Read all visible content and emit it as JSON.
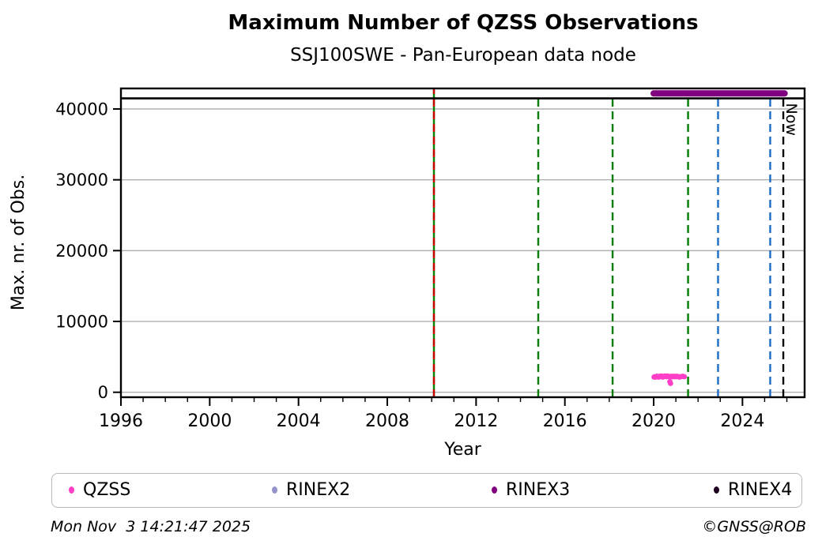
{
  "figure": {
    "footer_left": "Mon Nov  3 14:21:47 2025",
    "footer_right": "©GNSS@ROB"
  },
  "chart_data": {
    "type": "scatter",
    "title": "Maximum Number of QZSS Observations",
    "subtitle": "SSJ100SWE - Pan-European data node",
    "xlabel": "Year",
    "ylabel": "Max. nr. of Obs.",
    "xlim": [
      1996,
      2026.8
    ],
    "ylim": [
      -700,
      42900
    ],
    "xticks_major": [
      1996,
      2000,
      2004,
      2008,
      2012,
      2016,
      2020,
      2024
    ],
    "xticks_minor_step": 1,
    "yticks": [
      0,
      10000,
      20000,
      30000,
      40000
    ],
    "grid": "horizontal",
    "legend_position": "bottom",
    "colors": {
      "grid": "#b0b0b0",
      "frame": "#000000"
    },
    "reference_hline": {
      "y": 41500,
      "color": "#000000",
      "style": "solid"
    },
    "now_label": {
      "text": "Now",
      "x": 2025.84
    },
    "vlines": [
      {
        "x": 2010.1,
        "color": "#007f00",
        "style": "solid",
        "top": 42900
      },
      {
        "x": 2010.1,
        "color": "#cc0000",
        "style": "dashed",
        "top": 42900
      },
      {
        "x": 2014.8,
        "color": "#007f00",
        "style": "dashed",
        "top": 41500
      },
      {
        "x": 2018.15,
        "color": "#007f00",
        "style": "dashed",
        "top": 41500
      },
      {
        "x": 2021.55,
        "color": "#007f00",
        "style": "dashed",
        "top": 41500
      },
      {
        "x": 2022.9,
        "color": "#1c6ac4",
        "style": "dashed",
        "top": 41500
      },
      {
        "x": 2025.25,
        "color": "#1c6ac4",
        "style": "dashed",
        "top": 41500
      },
      {
        "x": 2025.84,
        "color": "#000000",
        "style": "dashed",
        "top": 41500
      }
    ],
    "series": [
      {
        "name": "QZSS",
        "color": "#ff3fc8",
        "marker": "dot",
        "points": [
          [
            2020.02,
            2150
          ],
          [
            2020.06,
            2200
          ],
          [
            2020.1,
            2150
          ],
          [
            2020.14,
            2250
          ],
          [
            2020.18,
            2200
          ],
          [
            2020.22,
            2150
          ],
          [
            2020.26,
            2250
          ],
          [
            2020.3,
            2200
          ],
          [
            2020.34,
            2300
          ],
          [
            2020.38,
            2200
          ],
          [
            2020.42,
            2150
          ],
          [
            2020.46,
            2250
          ],
          [
            2020.5,
            2300
          ],
          [
            2020.54,
            2250
          ],
          [
            2020.58,
            2200
          ],
          [
            2020.62,
            2300
          ],
          [
            2020.66,
            2250
          ],
          [
            2020.7,
            2200
          ],
          [
            2020.73,
            1500
          ],
          [
            2020.76,
            1250
          ],
          [
            2020.8,
            2250
          ],
          [
            2020.84,
            2200
          ],
          [
            2020.88,
            2250
          ],
          [
            2020.92,
            2200
          ],
          [
            2020.96,
            2250
          ],
          [
            2021.0,
            2200
          ],
          [
            2021.05,
            2250
          ],
          [
            2021.1,
            2200
          ],
          [
            2021.16,
            2150
          ],
          [
            2021.22,
            2200
          ],
          [
            2021.3,
            2250
          ],
          [
            2021.38,
            2200
          ]
        ]
      },
      {
        "name": "RINEX2",
        "color": "#9593c9",
        "marker": "dot",
        "points": []
      },
      {
        "name": "RINEX3",
        "color": "#800080",
        "marker": "thick-line",
        "segment": {
          "x1": 2020.0,
          "x2": 2025.9,
          "y": 42200
        },
        "points": []
      },
      {
        "name": "RINEX4",
        "color": "#1e0020",
        "marker": "dot",
        "points": []
      }
    ]
  },
  "legend": {
    "items": [
      {
        "label": "QZSS",
        "color": "#ff3fc8"
      },
      {
        "label": "RINEX2",
        "color": "#9593c9"
      },
      {
        "label": "RINEX3",
        "color": "#800080"
      },
      {
        "label": "RINEX4",
        "color": "#1e0020"
      }
    ]
  }
}
